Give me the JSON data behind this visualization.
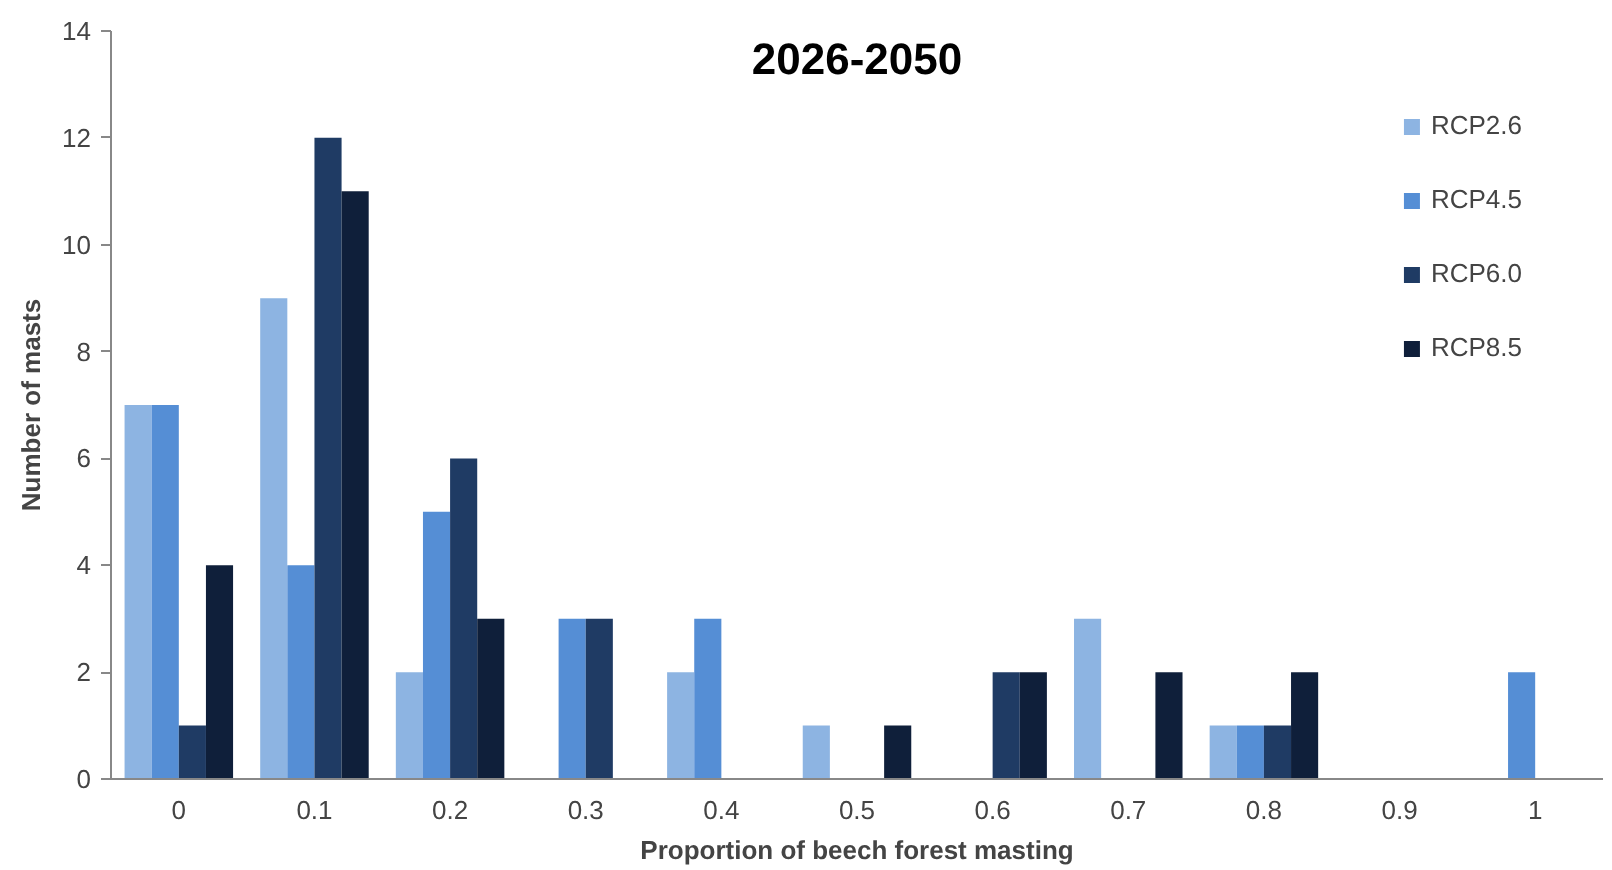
{
  "chart_data": {
    "type": "bar",
    "title": "2026-2050",
    "xlabel": "Proportion of beech forest masting",
    "ylabel": "Number of masts",
    "categories": [
      "0",
      "0.1",
      "0.2",
      "0.3",
      "0.4",
      "0.5",
      "0.6",
      "0.7",
      "0.8",
      "0.9",
      "1"
    ],
    "series": [
      {
        "name": "RCP2.6",
        "color": "#8db4e2",
        "values": [
          7,
          9,
          2,
          0,
          2,
          1,
          0,
          3,
          1,
          0,
          0
        ]
      },
      {
        "name": "RCP4.5",
        "color": "#558ed5",
        "values": [
          7,
          4,
          5,
          3,
          3,
          0,
          0,
          0,
          1,
          0,
          2
        ]
      },
      {
        "name": "RCP6.0",
        "color": "#1f3b64",
        "values": [
          1,
          12,
          6,
          3,
          0,
          0,
          2,
          0,
          1,
          0,
          0
        ]
      },
      {
        "name": "RCP8.5",
        "color": "#0f1f3a",
        "values": [
          4,
          11,
          3,
          0,
          0,
          1,
          2,
          2,
          2,
          0,
          0
        ]
      }
    ],
    "ylim": [
      0,
      14
    ],
    "yticks": [
      0,
      2,
      4,
      6,
      8,
      10,
      12,
      14
    ],
    "grid": false,
    "legend": "top right"
  }
}
